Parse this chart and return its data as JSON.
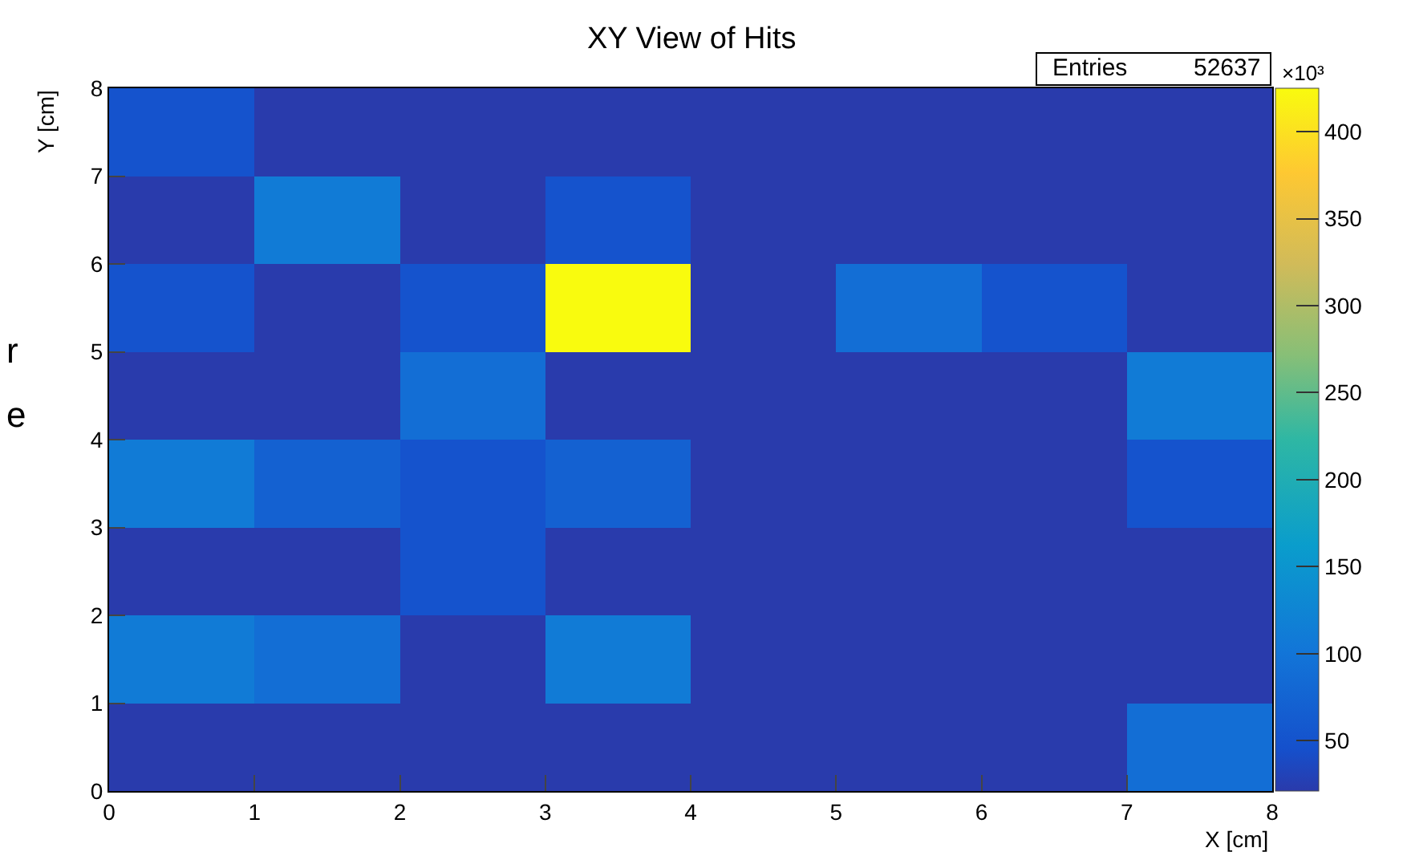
{
  "chart_data": {
    "type": "heatmap",
    "title": "XY View of Hits",
    "xlabel": "X [cm]",
    "ylabel": "Y [cm]",
    "x": [
      0.5,
      1.5,
      2.5,
      3.5,
      4.5,
      5.5,
      6.5,
      7.5
    ],
    "cells": [
      [
        50,
        22,
        22,
        22,
        22,
        22,
        22,
        22
      ],
      [
        22,
        110,
        22,
        50,
        22,
        22,
        22,
        22
      ],
      [
        50,
        22,
        50,
        425,
        22,
        90,
        50,
        22
      ],
      [
        22,
        22,
        90,
        22,
        22,
        22,
        22,
        110
      ],
      [
        110,
        70,
        50,
        70,
        22,
        22,
        22,
        50
      ],
      [
        22,
        22,
        50,
        22,
        22,
        22,
        22,
        22
      ],
      [
        110,
        90,
        22,
        110,
        22,
        22,
        22,
        22
      ],
      [
        22,
        22,
        22,
        22,
        22,
        22,
        22,
        90
      ]
    ],
    "xlim": [
      0,
      8
    ],
    "xticks": [
      0,
      1,
      2,
      3,
      4,
      5,
      6,
      7,
      8
    ],
    "ylim": [
      0,
      8
    ],
    "yticks": [
      0,
      1,
      2,
      3,
      4,
      5,
      6,
      7,
      8
    ],
    "clim": [
      21,
      425
    ],
    "cticks": [
      50,
      100,
      150,
      200,
      250,
      300,
      350,
      400
    ],
    "annotations": [
      "Entries",
      "52637",
      "×10³",
      "r",
      "e"
    ]
  }
}
